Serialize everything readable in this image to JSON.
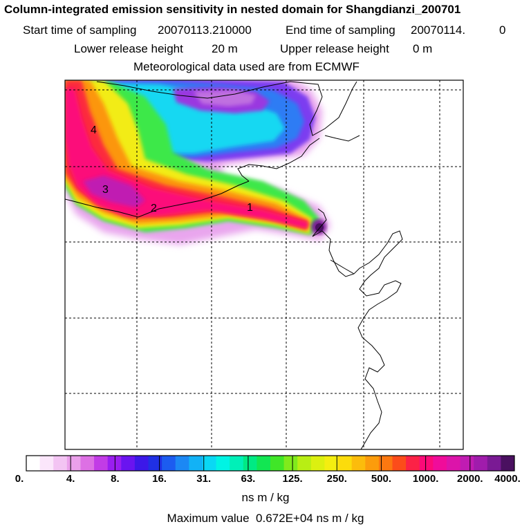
{
  "header": {
    "title": "Column-integrated emission sensitivity in nested domain for Shangdianzi_200701",
    "start_label": "Start time of sampling",
    "start_value": "20070113.210000",
    "end_label": "End time of sampling",
    "end_value": "20070114.",
    "end_suffix": "0",
    "lower_label": "Lower release height",
    "lower_value": "20 m",
    "upper_label": "Upper release height",
    "upper_value": "0 m",
    "meteo": "Meteorological data used are from ECMWF"
  },
  "plume_markers": [
    "1",
    "2",
    "3",
    "4"
  ],
  "colorbar": {
    "labels": [
      "0.",
      "4.",
      "8.",
      "16.",
      "31.",
      "63.",
      "125.",
      "250.",
      "500.",
      "1000.",
      "2000.",
      "4000."
    ],
    "colors": [
      "#ffffff",
      "#fbe6fb",
      "#f3c4f3",
      "#eaa0ea",
      "#dd70e4",
      "#c23ce6",
      "#9a1ef0",
      "#6a14f0",
      "#3c18e8",
      "#2030e4",
      "#1c5cf0",
      "#1c88f4",
      "#12b2f6",
      "#0ad8f4",
      "#00f4e4",
      "#00f0b8",
      "#00ea84",
      "#12e652",
      "#40e628",
      "#80ea1c",
      "#b8ee14",
      "#dcf010",
      "#f4ee10",
      "#fcdc0c",
      "#fcbc0c",
      "#fc9c0c",
      "#fc7810",
      "#fc4c1a",
      "#fc2246",
      "#fc0a78",
      "#f00c9a",
      "#dc14aa",
      "#c01cb2",
      "#a01cac",
      "#7a1a94",
      "#4a1060"
    ],
    "units": "ns m / kg"
  },
  "max_value": {
    "label": "Maximum value",
    "value": "0.672E+04 ns m / kg"
  }
}
